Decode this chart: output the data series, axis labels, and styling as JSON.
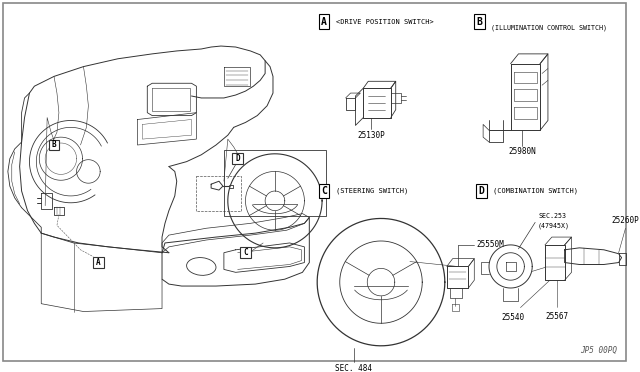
{
  "bg": "#ffffff",
  "lc": "#333333",
  "lc2": "#555555",
  "lw_main": 0.7,
  "lw_thin": 0.4,
  "font_size_label": 5.5,
  "font_size_part": 4.8,
  "font_size_section": 5.0,
  "section_A_label": "A",
  "section_A_title": "<DRIVE POSITION SWITCH>",
  "section_B_label": "B",
  "section_B_title": "(ILLUMINATION CONTROL SWITCH)",
  "section_C_label": "C",
  "section_C_title": "(STEERING SWITCH)",
  "section_D_label": "D",
  "section_D_title": "(COMBINATION SWITCH)",
  "part_25130P": "25130P",
  "part_25980N": "25980N",
  "part_25550M": "25550M",
  "part_sec484": "SEC. 484",
  "part_sec253": "SEC.253",
  "part_47945X": "(47945X)",
  "part_25260P": "25260P",
  "part_25540": "25540",
  "part_25567": "25567",
  "footer": "JP5 00PQ",
  "main_A_label": "A",
  "main_B_label": "B",
  "main_C_label": "C",
  "main_D_label": "D"
}
